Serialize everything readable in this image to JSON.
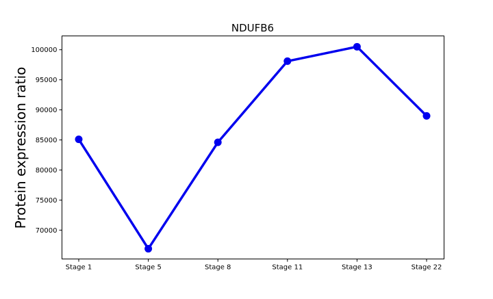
{
  "chart_data": {
    "type": "line",
    "title": "NDUFB6",
    "xlabel": "",
    "ylabel": "Protein expression ratio",
    "categories": [
      "Stage 1",
      "Stage 5",
      "Stage 8",
      "Stage 11",
      "Stage 13",
      "Stage 22"
    ],
    "series": [
      {
        "values": [
          85100,
          66900,
          84600,
          98100,
          100500,
          89000
        ],
        "color": "#0000ee"
      }
    ],
    "ylim": [
      65200,
      102300
    ],
    "yticks": [
      70000,
      75000,
      80000,
      85000,
      90000,
      95000,
      100000
    ],
    "grid": false,
    "legend": "none"
  }
}
